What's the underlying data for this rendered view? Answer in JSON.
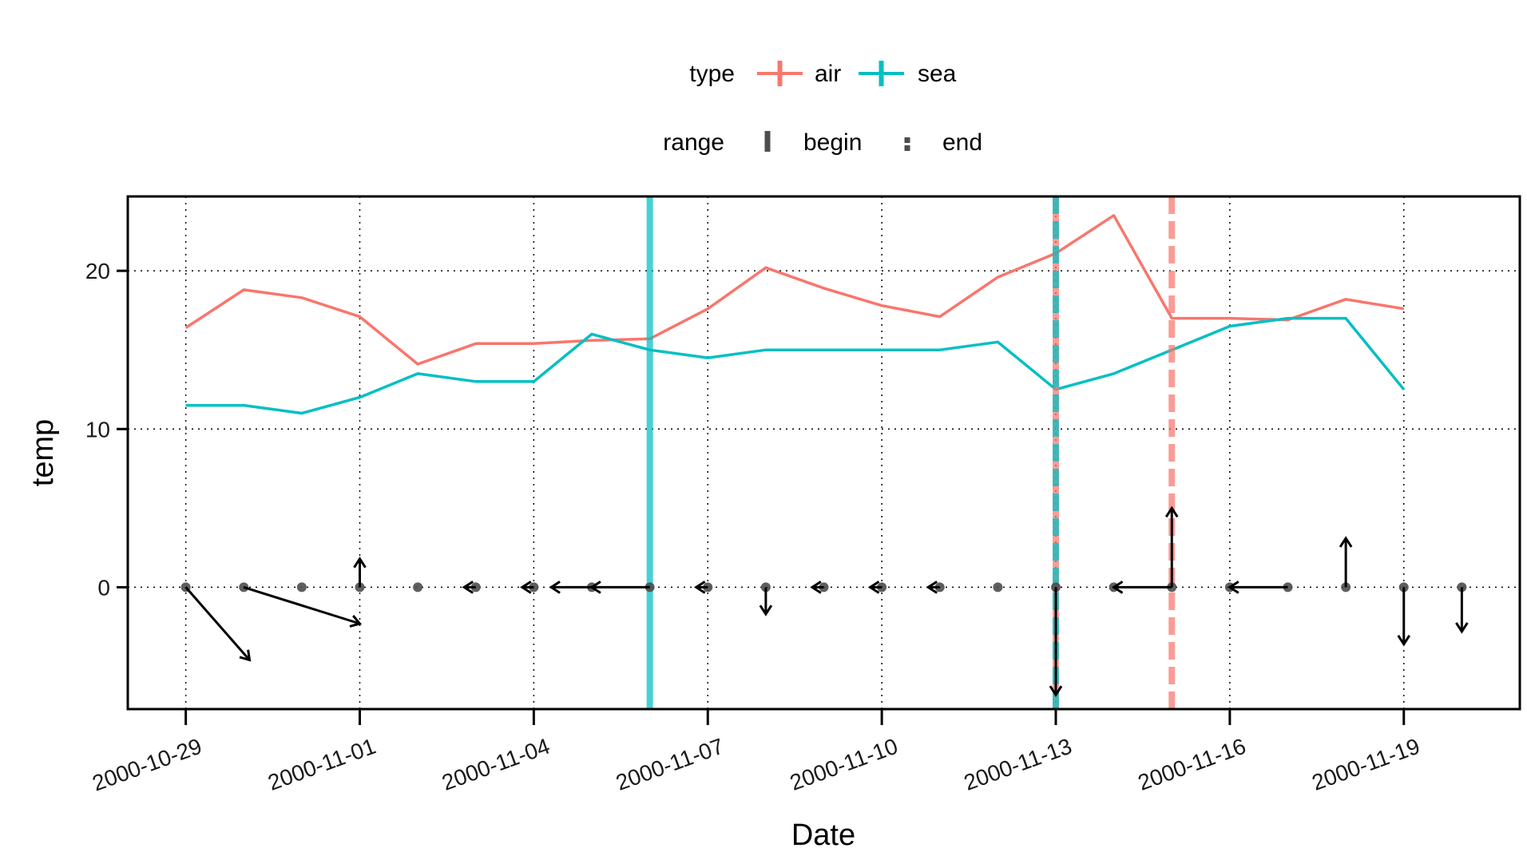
{
  "chart_data": {
    "type": "line",
    "title": "",
    "xlabel": "Date",
    "ylabel": "temp",
    "x_ticks": [
      "2000-10-29",
      "2000-11-01",
      "2000-11-04",
      "2000-11-07",
      "2000-11-10",
      "2000-11-13",
      "2000-11-16",
      "2000-11-19"
    ],
    "y_ticks": [
      0,
      10,
      20
    ],
    "xlim": [
      "2000-10-28",
      "2000-11-21"
    ],
    "ylim": [
      -7.7,
      24.7
    ],
    "grid": "dotted",
    "legend": {
      "placement": "top",
      "type_title": "type",
      "range_title": "range",
      "type_entries": [
        "air",
        "sea"
      ],
      "range_entries": [
        "begin",
        "end"
      ]
    },
    "colors": {
      "air": "#F8766D",
      "sea": "#00BFC4",
      "arrow": "#000000",
      "point": "#4d4d4d"
    },
    "dates": [
      "2000-10-29",
      "2000-10-30",
      "2000-10-31",
      "2000-11-01",
      "2000-11-02",
      "2000-11-03",
      "2000-11-04",
      "2000-11-05",
      "2000-11-06",
      "2000-11-07",
      "2000-11-08",
      "2000-11-09",
      "2000-11-10",
      "2000-11-11",
      "2000-11-12",
      "2000-11-13",
      "2000-11-14",
      "2000-11-15",
      "2000-11-16",
      "2000-11-17",
      "2000-11-18",
      "2000-11-19",
      "2000-11-20"
    ],
    "series": [
      {
        "name": "air",
        "values": [
          16.4,
          18.8,
          18.3,
          17.1,
          14.1,
          15.4,
          15.4,
          15.6,
          15.7,
          17.6,
          20.2,
          18.9,
          17.8,
          17.1,
          19.6,
          21.1,
          23.5,
          17.0,
          17.0,
          16.9,
          18.2,
          17.6,
          null
        ]
      },
      {
        "name": "sea",
        "values": [
          11.5,
          11.5,
          11.0,
          12.0,
          13.5,
          13.0,
          13.0,
          16.0,
          15.0,
          14.5,
          15.0,
          15.0,
          15.0,
          15.0,
          15.5,
          12.5,
          13.5,
          15.0,
          16.5,
          17.0,
          17.0,
          12.5,
          null
        ]
      }
    ],
    "vlines": [
      {
        "date": "2000-11-06",
        "type": "sea",
        "range": "begin"
      },
      {
        "date": "2000-11-13",
        "type": "air",
        "range": "begin"
      },
      {
        "date": "2000-11-13",
        "type": "sea",
        "range": "end"
      },
      {
        "date": "2000-11-15",
        "type": "air",
        "range": "end"
      }
    ],
    "wind": {
      "y": 0,
      "points": [
        "2000-10-29",
        "2000-10-30",
        "2000-10-31",
        "2000-11-01",
        "2000-11-02",
        "2000-11-03",
        "2000-11-04",
        "2000-11-05",
        "2000-11-06",
        "2000-11-07",
        "2000-11-08",
        "2000-11-09",
        "2000-11-10",
        "2000-11-11",
        "2000-11-12",
        "2000-11-13",
        "2000-11-14",
        "2000-11-15",
        "2000-11-16",
        "2000-11-17",
        "2000-11-18",
        "2000-11-19",
        "2000-11-20"
      ],
      "arrows": [
        {
          "from": [
            "2000-10-29",
            0
          ],
          "to": [
            1.1,
            -4.6
          ]
        },
        {
          "from": [
            "2000-10-30",
            0
          ],
          "to": [
            2.0,
            -2.3
          ]
        },
        {
          "from": [
            "2000-11-01",
            0
          ],
          "to": [
            0.0,
            1.8
          ]
        },
        {
          "from": [
            "2000-11-03",
            0
          ],
          "to": [
            -0.2,
            0.0
          ]
        },
        {
          "from": [
            "2000-11-04",
            0
          ],
          "to": [
            -0.2,
            0.0
          ]
        },
        {
          "from": [
            "2000-11-05",
            0
          ],
          "to": [
            -0.7,
            0.0
          ]
        },
        {
          "from": [
            "2000-11-06",
            0
          ],
          "to": [
            -1.0,
            0.0
          ]
        },
        {
          "from": [
            "2000-11-07",
            0
          ],
          "to": [
            -0.2,
            0.0
          ]
        },
        {
          "from": [
            "2000-11-08",
            0
          ],
          "to": [
            0.0,
            -1.7
          ]
        },
        {
          "from": [
            "2000-11-09",
            0
          ],
          "to": [
            -0.2,
            0.0
          ]
        },
        {
          "from": [
            "2000-11-10",
            0
          ],
          "to": [
            -0.2,
            0.0
          ]
        },
        {
          "from": [
            "2000-11-11",
            0
          ],
          "to": [
            -0.2,
            0.0
          ]
        },
        {
          "from": [
            "2000-11-13",
            0
          ],
          "to": [
            0.0,
            -6.8
          ]
        },
        {
          "from": [
            "2000-11-15",
            0
          ],
          "to": [
            -1.0,
            0.0
          ]
        },
        {
          "from": [
            "2000-11-15",
            0
          ],
          "to": [
            0.0,
            5.0
          ]
        },
        {
          "from": [
            "2000-11-17",
            0
          ],
          "to": [
            -1.0,
            0.0
          ]
        },
        {
          "from": [
            "2000-11-18",
            0
          ],
          "to": [
            0.0,
            3.1
          ]
        },
        {
          "from": [
            "2000-11-19",
            0
          ],
          "to": [
            0.0,
            -3.6
          ]
        },
        {
          "from": [
            "2000-11-20",
            0
          ],
          "to": [
            0.0,
            -2.8
          ]
        }
      ]
    }
  }
}
